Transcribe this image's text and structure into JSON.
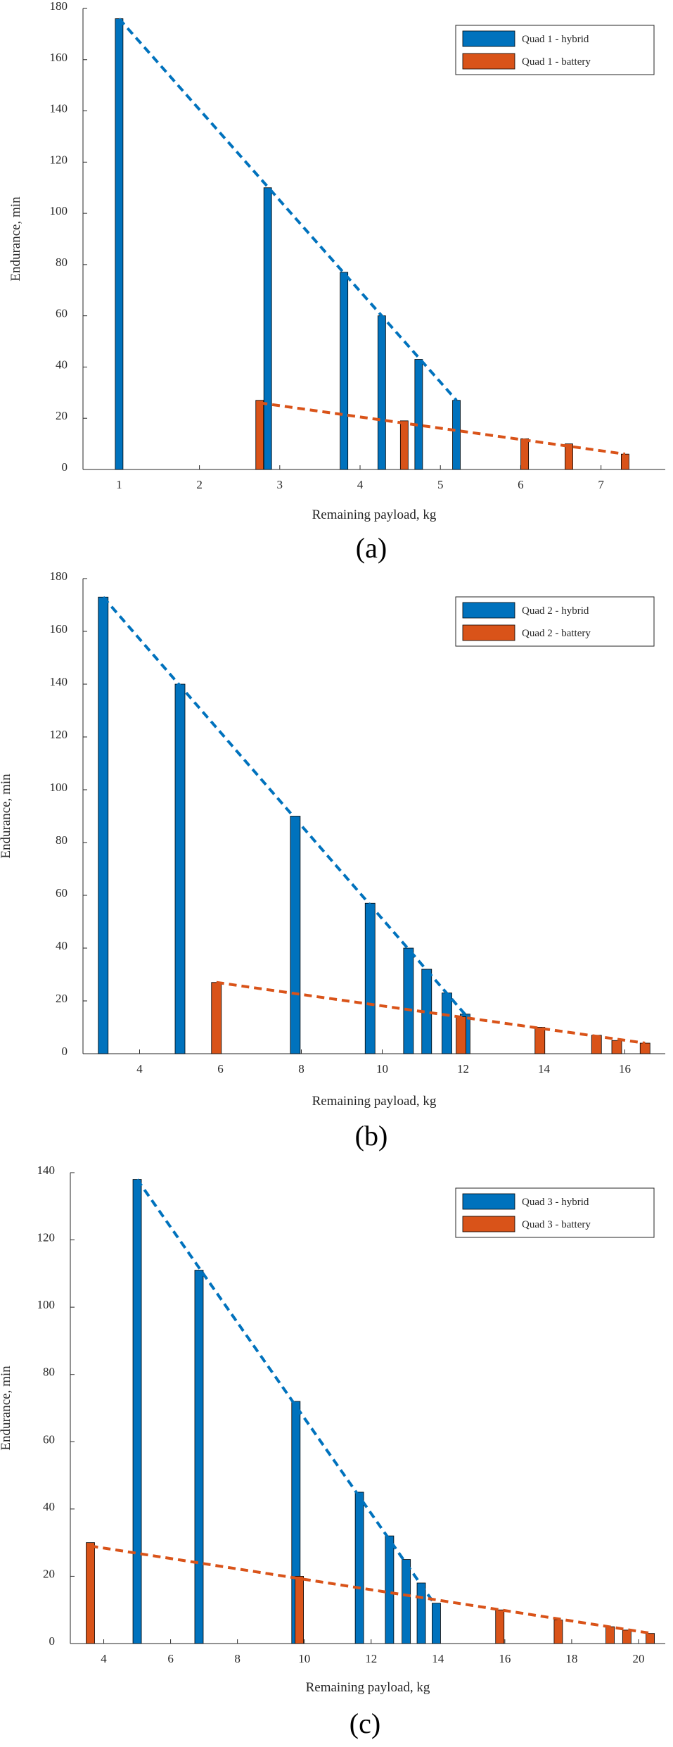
{
  "colors": {
    "hybrid": "#0072BD",
    "battery": "#D95319",
    "axis": "#262626"
  },
  "chart_data": [
    {
      "type": "bar",
      "caption": "(a)",
      "xlabel": "Remaining payload, kg",
      "ylabel": "Endurance, min",
      "xlim": [
        0.55,
        7.8
      ],
      "ylim": [
        0,
        180
      ],
      "xticks": [
        1,
        2,
        3,
        4,
        5,
        6,
        7
      ],
      "yticks": [
        0,
        20,
        40,
        60,
        80,
        100,
        120,
        140,
        160,
        180
      ],
      "legend_position": "top-right",
      "series": [
        {
          "name": "Quad 1 - hybrid",
          "color": "hybrid",
          "style": "bar",
          "x": [
            1.0,
            2.85,
            3.8,
            4.27,
            4.73,
            5.2
          ],
          "values": [
            176,
            110,
            77,
            60,
            43,
            27
          ]
        },
        {
          "name": "Quad 1 - battery",
          "color": "battery",
          "style": "bar",
          "x": [
            2.75,
            4.55,
            6.05,
            6.6,
            7.3
          ],
          "values": [
            27,
            19,
            12,
            10,
            6
          ]
        }
      ],
      "trendlines": [
        {
          "color": "hybrid",
          "points": [
            [
              1.0,
              176
            ],
            [
              5.2,
              27
            ]
          ]
        },
        {
          "color": "battery",
          "points": [
            [
              2.75,
              26
            ],
            [
              7.3,
              6
            ]
          ]
        }
      ]
    },
    {
      "type": "bar",
      "caption": "(b)",
      "xlabel": "Remaining payload, kg",
      "ylabel": "Endurance, min",
      "xlim": [
        2.6,
        17.0
      ],
      "ylim": [
        0,
        180
      ],
      "xticks": [
        4,
        6,
        8,
        10,
        12,
        14,
        16
      ],
      "yticks": [
        0,
        20,
        40,
        60,
        80,
        100,
        120,
        140,
        160,
        180
      ],
      "legend_position": "top-right",
      "series": [
        {
          "name": "Quad 2 - hybrid",
          "color": "hybrid",
          "style": "bar",
          "x": [
            3.1,
            5.0,
            7.85,
            9.7,
            10.65,
            11.1,
            11.6,
            12.05
          ],
          "values": [
            173,
            140,
            90,
            57,
            40,
            32,
            23,
            15
          ]
        },
        {
          "name": "Quad 2 - battery",
          "color": "battery",
          "style": "bar",
          "x": [
            5.9,
            11.95,
            13.9,
            15.3,
            15.8,
            16.5
          ],
          "values": [
            27,
            14,
            10,
            7,
            5,
            4
          ]
        }
      ],
      "trendlines": [
        {
          "color": "hybrid",
          "points": [
            [
              3.1,
              173
            ],
            [
              12.1,
              14
            ]
          ]
        },
        {
          "color": "battery",
          "points": [
            [
              5.9,
              27
            ],
            [
              16.5,
              4
            ]
          ]
        }
      ]
    },
    {
      "type": "bar",
      "caption": "(c)",
      "xlabel": "Remaining payload, kg",
      "ylabel": "Endurance, min",
      "xlim": [
        3.0,
        20.8
      ],
      "ylim": [
        0,
        140
      ],
      "xticks": [
        4,
        6,
        8,
        10,
        12,
        14,
        16,
        18,
        20
      ],
      "yticks": [
        0,
        20,
        40,
        60,
        80,
        100,
        120,
        140
      ],
      "legend_position": "top-right",
      "series": [
        {
          "name": "Quad 3 - hybrid",
          "color": "hybrid",
          "style": "bar",
          "x": [
            5.0,
            6.85,
            9.75,
            11.65,
            12.55,
            13.05,
            13.5,
            13.95
          ],
          "values": [
            138,
            111,
            72,
            45,
            32,
            25,
            18,
            12
          ]
        },
        {
          "name": "Quad 3 - battery",
          "color": "battery",
          "style": "bar",
          "x": [
            3.6,
            9.85,
            15.85,
            17.6,
            19.15,
            19.65,
            20.35
          ],
          "values": [
            30,
            20,
            10,
            7,
            5,
            4,
            3
          ]
        }
      ],
      "trendlines": [
        {
          "color": "hybrid",
          "points": [
            [
              5.0,
              138
            ],
            [
              13.95,
              11
            ]
          ]
        },
        {
          "color": "battery",
          "points": [
            [
              3.6,
              29
            ],
            [
              20.4,
              3
            ]
          ]
        }
      ]
    }
  ]
}
